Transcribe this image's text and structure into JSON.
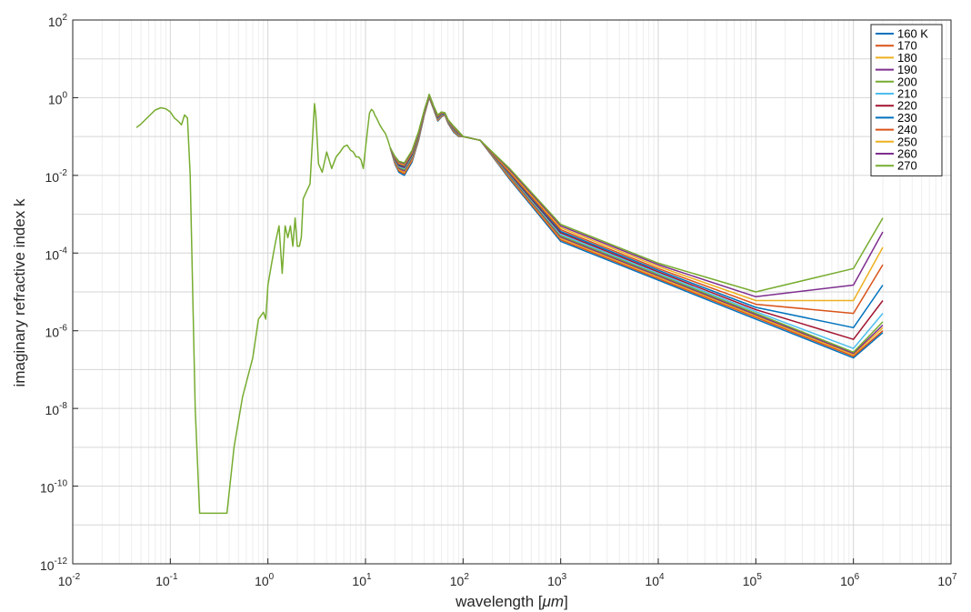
{
  "chart_data": {
    "type": "line",
    "xlabel_main": "wavelength [",
    "xlabel_unit": "μm",
    "xlabel_end": "]",
    "ylabel": "imaginary refractive index k",
    "xscale": "log",
    "yscale": "log",
    "xlim": [
      0.01,
      10000000
    ],
    "ylim": [
      1e-12,
      100
    ],
    "grid": true,
    "legend_position": "top-right",
    "x_ticks": [
      {
        "base": "10",
        "exp": "-2"
      },
      {
        "base": "10",
        "exp": "-1"
      },
      {
        "base": "10",
        "exp": "0"
      },
      {
        "base": "10",
        "exp": "1"
      },
      {
        "base": "10",
        "exp": "2"
      },
      {
        "base": "10",
        "exp": "3"
      },
      {
        "base": "10",
        "exp": "4"
      },
      {
        "base": "10",
        "exp": "5"
      },
      {
        "base": "10",
        "exp": "6"
      },
      {
        "base": "10",
        "exp": "7"
      }
    ],
    "y_ticks": [
      {
        "base": "10",
        "exp": "2"
      },
      {
        "base": "10",
        "exp": "0"
      },
      {
        "base": "10",
        "exp": "-2"
      },
      {
        "base": "10",
        "exp": "-4"
      },
      {
        "base": "10",
        "exp": "-6"
      },
      {
        "base": "10",
        "exp": "-8"
      },
      {
        "base": "10",
        "exp": "-10"
      },
      {
        "base": "10",
        "exp": "-12"
      }
    ],
    "common_curve": {
      "x": [
        0.045,
        0.05,
        0.06,
        0.07,
        0.08,
        0.09,
        0.1,
        0.11,
        0.12,
        0.13,
        0.14,
        0.15,
        0.16,
        0.18,
        0.2,
        0.25,
        0.3,
        0.38,
        0.45,
        0.55,
        0.7,
        0.8,
        0.9,
        0.95,
        1.0,
        1.1,
        1.2,
        1.3,
        1.4,
        1.5,
        1.6,
        1.7,
        1.8,
        1.9,
        2.0,
        2.1,
        2.2,
        2.3,
        2.5,
        2.7,
        2.9,
        3.0,
        3.1,
        3.3,
        3.6,
        4.0,
        4.5,
        5.0,
        5.5,
        6.0,
        6.5,
        7.0,
        7.5,
        8.0,
        8.5,
        9.0,
        9.5,
        10.0,
        10.5,
        11.0,
        11.5,
        12.0,
        12.5,
        13.0,
        14.0,
        15.0,
        16.0,
        17.0,
        18.0
      ],
      "y": [
        0.17,
        0.21,
        0.33,
        0.48,
        0.55,
        0.52,
        0.43,
        0.3,
        0.25,
        0.2,
        0.36,
        0.3,
        0.01,
        1e-08,
        2e-11,
        2e-11,
        2e-11,
        2e-11,
        1e-09,
        2e-08,
        2e-07,
        2e-06,
        3e-06,
        2e-06,
        1.5e-05,
        6e-05,
        0.0002,
        0.0005,
        3e-05,
        0.0005,
        0.00025,
        0.0005,
        0.00015,
        0.0008,
        0.00015,
        0.00015,
        0.00025,
        0.0025,
        0.004,
        0.006,
        0.15,
        0.7,
        0.35,
        0.02,
        0.012,
        0.04,
        0.015,
        0.03,
        0.04,
        0.055,
        0.06,
        0.045,
        0.04,
        0.03,
        0.03,
        0.025,
        0.015,
        0.05,
        0.15,
        0.4,
        0.5,
        0.45,
        0.35,
        0.3,
        0.2,
        0.15,
        0.12,
        0.08,
        0.05
      ]
    },
    "branch_x": [
      18,
      20,
      22,
      25,
      30,
      35,
      40,
      45,
      50,
      55,
      60,
      65,
      70,
      80,
      90,
      100,
      150
    ],
    "branch_x_end": [
      150,
      300,
      1000,
      10000,
      100000,
      1000000,
      2000000
    ],
    "series": [
      {
        "name": "160 K",
        "color": "#0072BD",
        "b": [
          0.05,
          0.02,
          0.012,
          0.01,
          0.022,
          0.08,
          0.35,
          1.0,
          0.5,
          0.25,
          0.32,
          0.36,
          0.22,
          0.13,
          0.1,
          0.1,
          0.08
        ],
        "tail": [
          0.08,
          0.008,
          0.0002,
          2e-05,
          2e-06,
          2e-07,
          9e-07
        ]
      },
      {
        "name": "170",
        "color": "#D95319",
        "b": [
          0.05,
          0.021,
          0.013,
          0.011,
          0.024,
          0.085,
          0.36,
          1.02,
          0.51,
          0.26,
          0.33,
          0.36,
          0.225,
          0.135,
          0.103,
          0.1,
          0.08
        ],
        "tail": [
          0.08,
          0.0085,
          0.00022,
          2.2e-05,
          2.2e-06,
          2.2e-07,
          1e-06
        ]
      },
      {
        "name": "180",
        "color": "#EDB120",
        "b": [
          0.05,
          0.022,
          0.014,
          0.012,
          0.026,
          0.09,
          0.37,
          1.04,
          0.52,
          0.27,
          0.34,
          0.37,
          0.23,
          0.14,
          0.106,
          0.1,
          0.08
        ],
        "tail": [
          0.08,
          0.009,
          0.00024,
          2.4e-05,
          2.4e-06,
          2.4e-07,
          1.2e-06
        ]
      },
      {
        "name": "190",
        "color": "#7E2F8E",
        "b": [
          0.05,
          0.023,
          0.015,
          0.013,
          0.028,
          0.095,
          0.38,
          1.06,
          0.53,
          0.28,
          0.35,
          0.37,
          0.235,
          0.145,
          0.11,
          0.1,
          0.08
        ],
        "tail": [
          0.08,
          0.0095,
          0.00026,
          2.6e-05,
          2.6e-06,
          2.6e-07,
          1.4e-06
        ]
      },
      {
        "name": "200",
        "color": "#77AC30",
        "b": [
          0.05,
          0.024,
          0.016,
          0.014,
          0.03,
          0.1,
          0.4,
          1.08,
          0.54,
          0.29,
          0.36,
          0.38,
          0.24,
          0.15,
          0.113,
          0.1,
          0.08
        ],
        "tail": [
          0.08,
          0.01,
          0.00028,
          2.8e-05,
          2.8e-06,
          2.8e-07,
          1.7e-06
        ]
      },
      {
        "name": "210",
        "color": "#4DBEEE",
        "b": [
          0.05,
          0.025,
          0.017,
          0.015,
          0.032,
          0.105,
          0.41,
          1.1,
          0.55,
          0.3,
          0.37,
          0.38,
          0.245,
          0.155,
          0.116,
          0.1,
          0.08
        ],
        "tail": [
          0.08,
          0.0105,
          0.0003,
          3e-05,
          3.1e-06,
          3.5e-07,
          2.8e-06
        ]
      },
      {
        "name": "220",
        "color": "#A2142F",
        "b": [
          0.05,
          0.026,
          0.018,
          0.016,
          0.034,
          0.11,
          0.42,
          1.12,
          0.56,
          0.31,
          0.38,
          0.39,
          0.25,
          0.16,
          0.12,
          0.1,
          0.08
        ],
        "tail": [
          0.08,
          0.011,
          0.00033,
          3.3e-05,
          3.5e-06,
          6e-07,
          6e-06
        ]
      },
      {
        "name": "230",
        "color": "#0072BD",
        "b": [
          0.05,
          0.027,
          0.019,
          0.017,
          0.036,
          0.115,
          0.43,
          1.14,
          0.57,
          0.32,
          0.39,
          0.39,
          0.255,
          0.165,
          0.123,
          0.1,
          0.08
        ],
        "tail": [
          0.08,
          0.0115,
          0.00036,
          3.6e-05,
          4e-06,
          1.2e-06,
          1.5e-05
        ]
      },
      {
        "name": "240",
        "color": "#D95319",
        "b": [
          0.05,
          0.028,
          0.02,
          0.018,
          0.038,
          0.12,
          0.44,
          1.16,
          0.58,
          0.33,
          0.4,
          0.4,
          0.26,
          0.17,
          0.126,
          0.1,
          0.08
        ],
        "tail": [
          0.08,
          0.012,
          0.0004,
          4e-05,
          4.8e-06,
          2.8e-06,
          5e-05
        ]
      },
      {
        "name": "250",
        "color": "#EDB120",
        "b": [
          0.05,
          0.029,
          0.021,
          0.019,
          0.04,
          0.125,
          0.45,
          1.18,
          0.59,
          0.34,
          0.41,
          0.4,
          0.265,
          0.175,
          0.13,
          0.1,
          0.08
        ],
        "tail": [
          0.08,
          0.013,
          0.00045,
          4.5e-05,
          6e-06,
          6e-06,
          0.00014
        ]
      },
      {
        "name": "260",
        "color": "#7E2F8E",
        "b": [
          0.05,
          0.03,
          0.022,
          0.02,
          0.042,
          0.13,
          0.46,
          1.2,
          0.6,
          0.35,
          0.42,
          0.41,
          0.27,
          0.18,
          0.133,
          0.1,
          0.08
        ],
        "tail": [
          0.08,
          0.014,
          0.0005,
          5e-05,
          7.5e-06,
          1.5e-05,
          0.00035
        ]
      },
      {
        "name": "270",
        "color": "#77AC30",
        "b": [
          0.05,
          0.031,
          0.023,
          0.021,
          0.044,
          0.135,
          0.47,
          1.22,
          0.61,
          0.36,
          0.43,
          0.41,
          0.275,
          0.185,
          0.136,
          0.1,
          0.08
        ],
        "tail": [
          0.08,
          0.015,
          0.00055,
          5.5e-05,
          1e-05,
          4e-05,
          0.0008
        ]
      }
    ]
  }
}
